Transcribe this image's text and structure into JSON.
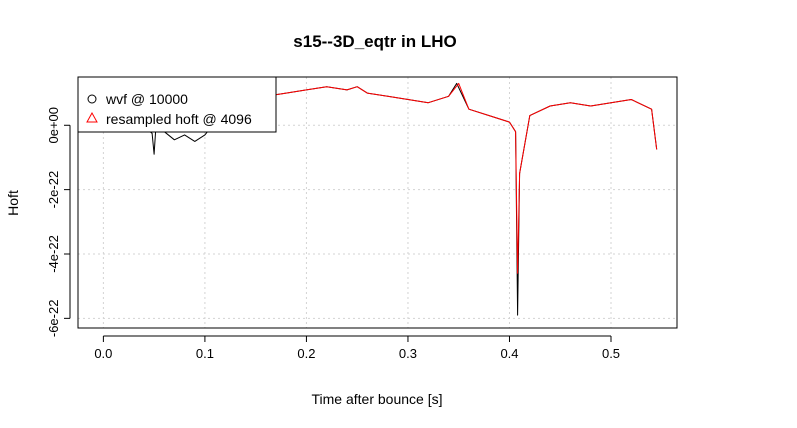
{
  "chart_data": {
    "type": "line",
    "title": "s15--3D_eqtr in LHO",
    "xlabel": "Time after bounce [s]",
    "ylabel": "Hoft",
    "xlim": [
      -0.025,
      0.565
    ],
    "ylim": [
      -6.3e-22,
      1.5e-22
    ],
    "x_ticks": [
      0.0,
      0.1,
      0.2,
      0.3,
      0.4,
      0.5
    ],
    "x_tick_labels": [
      "0.0",
      "0.1",
      "0.2",
      "0.3",
      "0.4",
      "0.5"
    ],
    "y_ticks": [
      -6e-22,
      -4e-22,
      -2e-22,
      0
    ],
    "y_tick_labels": [
      "-6e-22",
      "-4e-22",
      "-2e-22",
      "0e+00"
    ],
    "grid": true,
    "legend_position": "top-left",
    "series": [
      {
        "name": "wvf @ 10000",
        "color": "#000000",
        "marker": "circle",
        "points": [
          [
            0.0,
            0.0
          ],
          [
            0.02,
            -2e-24
          ],
          [
            0.04,
            -5e-24
          ],
          [
            0.048,
            -2.5e-23
          ],
          [
            0.05,
            -9e-23
          ],
          [
            0.052,
            1e-23
          ],
          [
            0.06,
            -2e-23
          ],
          [
            0.07,
            -4.5e-23
          ],
          [
            0.08,
            -3e-23
          ],
          [
            0.09,
            -5e-23
          ],
          [
            0.1,
            -3e-23
          ],
          [
            0.11,
            1e-23
          ],
          [
            0.12,
            3e-23
          ],
          [
            0.14,
            6e-23
          ],
          [
            0.16,
            9e-23
          ],
          [
            0.18,
            1e-22
          ],
          [
            0.2,
            1.1e-22
          ],
          [
            0.22,
            1.2e-22
          ],
          [
            0.24,
            1.1e-22
          ],
          [
            0.25,
            1.2e-22
          ],
          [
            0.26,
            1e-22
          ],
          [
            0.28,
            9e-23
          ],
          [
            0.3,
            8e-23
          ],
          [
            0.32,
            7e-23
          ],
          [
            0.34,
            9e-23
          ],
          [
            0.348,
            1.3e-22
          ],
          [
            0.36,
            5e-23
          ],
          [
            0.38,
            3e-23
          ],
          [
            0.4,
            1e-23
          ],
          [
            0.406,
            -2e-23
          ],
          [
            0.408,
            -5.9e-22
          ],
          [
            0.41,
            -1.5e-22
          ],
          [
            0.42,
            3e-23
          ],
          [
            0.44,
            6e-23
          ],
          [
            0.46,
            7e-23
          ],
          [
            0.48,
            6e-23
          ],
          [
            0.5,
            7e-23
          ],
          [
            0.52,
            8e-23
          ],
          [
            0.54,
            5e-23
          ],
          [
            0.545,
            -7.5e-23
          ]
        ]
      },
      {
        "name": "resampled hoft @ 4096",
        "color": "#ff0000",
        "marker": "triangle",
        "points": [
          [
            0.11,
            1e-23
          ],
          [
            0.12,
            3e-23
          ],
          [
            0.14,
            6e-23
          ],
          [
            0.16,
            9e-23
          ],
          [
            0.18,
            1e-22
          ],
          [
            0.2,
            1.1e-22
          ],
          [
            0.22,
            1.2e-22
          ],
          [
            0.24,
            1.1e-22
          ],
          [
            0.25,
            1.2e-22
          ],
          [
            0.26,
            1e-22
          ],
          [
            0.28,
            9e-23
          ],
          [
            0.3,
            8e-23
          ],
          [
            0.32,
            7e-23
          ],
          [
            0.34,
            9e-23
          ],
          [
            0.35,
            1.3e-22
          ],
          [
            0.36,
            5e-23
          ],
          [
            0.38,
            3e-23
          ],
          [
            0.4,
            1e-23
          ],
          [
            0.406,
            -2e-23
          ],
          [
            0.408,
            -4.6e-22
          ],
          [
            0.41,
            -1.5e-22
          ],
          [
            0.42,
            3e-23
          ],
          [
            0.44,
            6e-23
          ],
          [
            0.46,
            7e-23
          ],
          [
            0.48,
            6e-23
          ],
          [
            0.5,
            7e-23
          ],
          [
            0.52,
            8e-23
          ],
          [
            0.54,
            5e-23
          ],
          [
            0.545,
            -7.5e-23
          ]
        ]
      }
    ]
  }
}
